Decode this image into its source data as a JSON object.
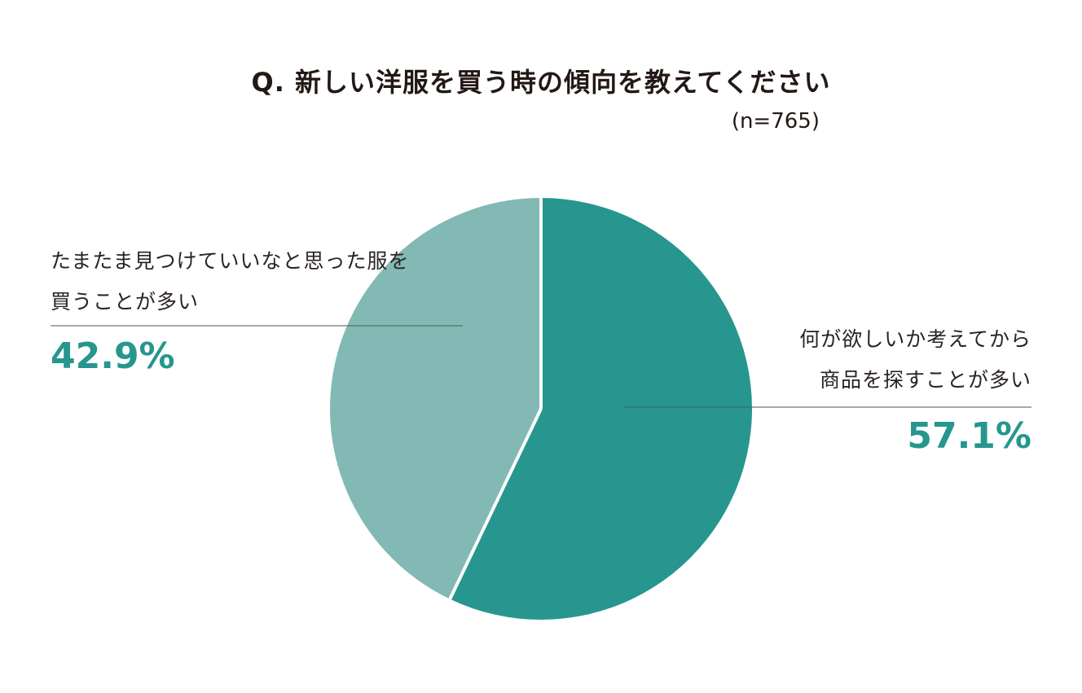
{
  "chart_data": {
    "type": "pie",
    "title": "Q. 新しい洋服を買う時の傾向を教えてください",
    "sample_size": "(n=765)",
    "slices": [
      {
        "label_lines": [
          "何が欲しいか考えてから",
          "商品を探すことが多い"
        ],
        "value": 57.1,
        "value_label": "57.1%",
        "color": "#27968f"
      },
      {
        "label_lines": [
          "たまたま見つけていいなと思った服を",
          "買うことが多い"
        ],
        "value": 42.9,
        "value_label": "42.9%",
        "color": "#82b9b4"
      }
    ],
    "colors": {
      "percent_text": "#26968e",
      "leader_line": "#555555",
      "slice_separator": "#ffffff"
    }
  }
}
